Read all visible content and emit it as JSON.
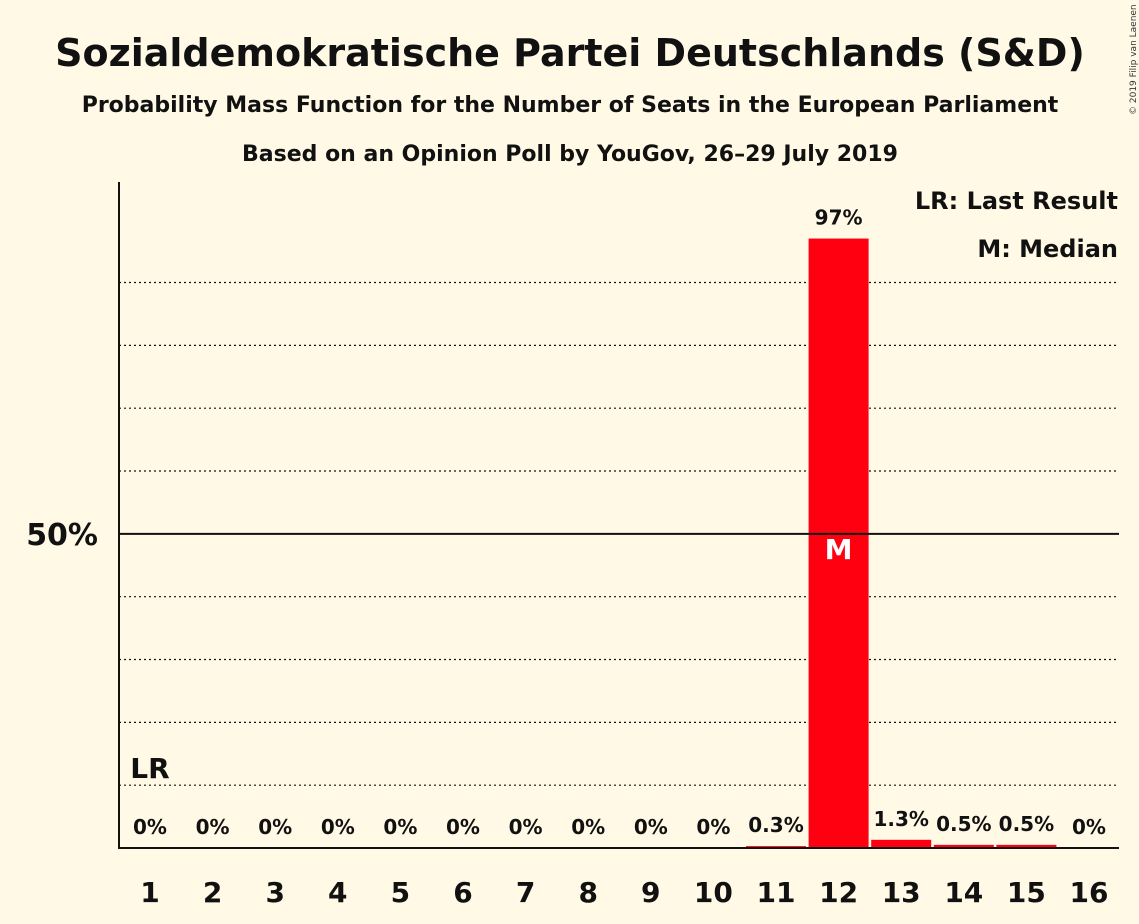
{
  "title": "Sozialdemokratische Partei Deutschlands (S&D)",
  "subtitle_1": "Probability Mass Function for the Number of Seats in the European Parliament",
  "subtitle_2": "Based on an Opinion Poll by YouGov, 26–29 July 2019",
  "copyright": "© 2019 Filip van Laenen",
  "legend": {
    "last_result": "LR: Last Result",
    "median": "M: Median"
  },
  "colors": {
    "bar": "#ff0011",
    "background": "#fff9e6",
    "axis": "#111111",
    "median_text": "#ffffff"
  },
  "chart_data": {
    "type": "bar",
    "title": "Sozialdemokratische Partei Deutschlands (S&D)",
    "categories": [
      "1",
      "2",
      "3",
      "4",
      "5",
      "6",
      "7",
      "8",
      "9",
      "10",
      "11",
      "12",
      "13",
      "14",
      "15",
      "16"
    ],
    "values": [
      0,
      0,
      0,
      0,
      0,
      0,
      0,
      0,
      0,
      0,
      0.3,
      97,
      1.3,
      0.5,
      0.5,
      0
    ],
    "value_labels": [
      "0%",
      "0%",
      "0%",
      "0%",
      "0%",
      "0%",
      "0%",
      "0%",
      "0%",
      "0%",
      "0.3%",
      "97%",
      "1.3%",
      "0.5%",
      "0.5%",
      "0%"
    ],
    "y_ticks": [
      {
        "value": 50,
        "label": "50%"
      }
    ],
    "gridlines": [
      10,
      20,
      30,
      40,
      60,
      70,
      80,
      90
    ],
    "ylim": [
      0,
      106
    ],
    "last_result": {
      "category": "1",
      "label": "LR"
    },
    "median": {
      "category": "12",
      "label": "M"
    },
    "legend_position": "top-right",
    "grid": true
  }
}
